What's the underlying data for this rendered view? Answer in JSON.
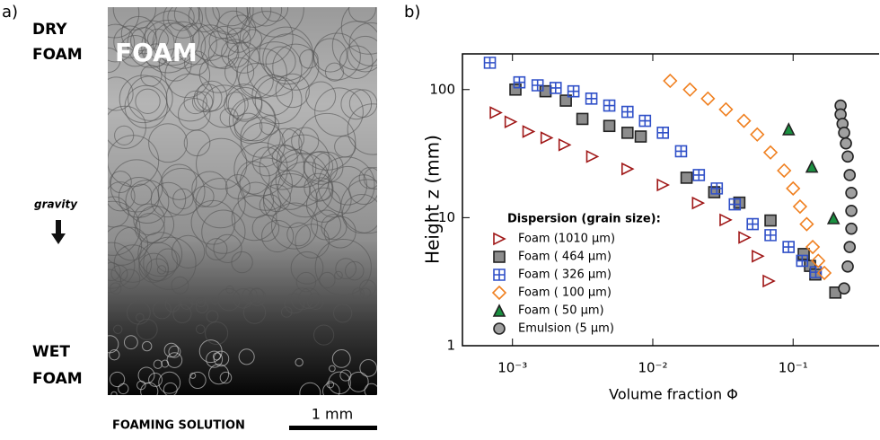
{
  "panel_a": {
    "label": "a)",
    "dry": "DRY",
    "dry_foam": "FOAM",
    "photo_title": "FOAM",
    "gravity": "gravity",
    "wet": "WET",
    "wet_foam": "FOAM",
    "solution": "FOAMING SOLUTION",
    "scale": "1 mm"
  },
  "chart_data": {
    "type": "scatter",
    "panel_label": "b)",
    "x_label": "Volume fraction Φ",
    "y_label": "Height z (mm)",
    "xscale": "log",
    "yscale": "log",
    "xlim": [
      0.00044,
      0.41
    ],
    "ylim": [
      1,
      190
    ],
    "xticks": [
      {
        "value": 0.001,
        "label": "10⁻³"
      },
      {
        "value": 0.01,
        "label": "10⁻²"
      },
      {
        "value": 0.1,
        "label": "10⁻¹"
      }
    ],
    "yticks": [
      1,
      10,
      100
    ],
    "legend_title": "Dispersion (grain size):",
    "series": [
      {
        "name": "Foam  (1010 μm)",
        "color": "#a01818",
        "marker": "triangle-right",
        "filled": false,
        "x": [
          0.00076,
          0.00097,
          0.0013,
          0.00175,
          0.00235,
          0.0037,
          0.0066,
          0.0118,
          0.021,
          0.033,
          0.045,
          0.056,
          0.067
        ],
        "values": [
          66,
          56,
          47,
          42,
          37,
          30,
          24,
          18,
          13,
          9.6,
          7,
          5,
          3.2
        ]
      },
      {
        "name": "Foam  ( 464 μm)",
        "color": "#8c8c8c",
        "marker": "square",
        "filled": true,
        "x": [
          0.00105,
          0.00172,
          0.0024,
          0.00315,
          0.0049,
          0.0066,
          0.0082,
          0.0174,
          0.0274,
          0.0414,
          0.069,
          0.119,
          0.132,
          0.144,
          0.2
        ],
        "values": [
          100,
          97,
          82,
          59,
          52,
          46,
          43,
          20.5,
          15.8,
          13.1,
          9.5,
          5.2,
          4.2,
          3.6,
          2.6
        ]
      },
      {
        "name": "Foam  ( 326 μm)",
        "color": "#3050c8",
        "marker": "square-plus",
        "filled": false,
        "x": [
          0.00069,
          0.00112,
          0.00151,
          0.00203,
          0.00272,
          0.00365,
          0.0049,
          0.0066,
          0.0088,
          0.0118,
          0.0159,
          0.0213,
          0.0286,
          0.0384,
          0.0515,
          0.069,
          0.0928,
          0.116,
          0.145
        ],
        "values": [
          162,
          114,
          108,
          103,
          97,
          85,
          75,
          67,
          57,
          46,
          33,
          21.5,
          16.9,
          12.7,
          8.9,
          7.3,
          5.9,
          4.6,
          3.75
        ]
      },
      {
        "name": "Foam  ( 100 μm)",
        "color": "#f08020",
        "marker": "diamond",
        "filled": false,
        "x": [
          0.0133,
          0.0184,
          0.0247,
          0.0332,
          0.0446,
          0.0555,
          0.069,
          0.0863,
          0.1,
          0.112,
          0.125,
          0.138,
          0.151,
          0.167
        ],
        "values": [
          117,
          100,
          85,
          70,
          57,
          44.6,
          32.3,
          23.3,
          16.9,
          12.2,
          8.9,
          5.9,
          4.6,
          3.7
        ]
      },
      {
        "name": "Foam  (  50 μm)",
        "color": "#1a9040",
        "marker": "triangle-up",
        "filled": true,
        "x": [
          0.093,
          0.136,
          0.194
        ],
        "values": [
          49,
          25,
          9.9
        ]
      },
      {
        "name": "Emulsion (5 μm)",
        "color": "#a0a0a0",
        "marker": "circle",
        "filled": true,
        "x": [
          0.218,
          0.218,
          0.225,
          0.231,
          0.238,
          0.245,
          0.253,
          0.26,
          0.26,
          0.26,
          0.253,
          0.245,
          0.231
        ],
        "values": [
          75,
          64,
          54,
          46,
          38,
          30,
          21.5,
          15.6,
          11.3,
          8.2,
          5.9,
          4.15,
          2.8
        ]
      }
    ]
  }
}
